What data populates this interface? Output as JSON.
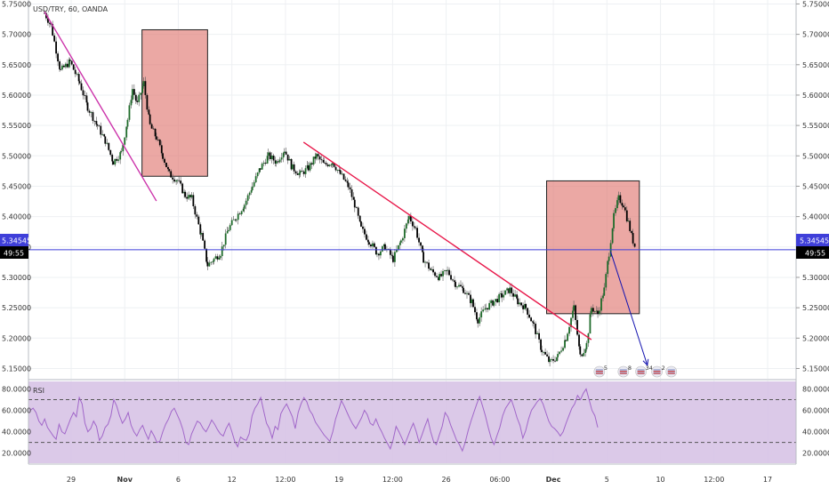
{
  "symbol_label": "USD/TRY, 60, OANDA",
  "colors": {
    "up": "#1e6b2a",
    "down": "#000000",
    "grid": "#eef0f3",
    "box_fill": "#e07a73",
    "box_stroke": "#222222",
    "trendline_magenta": "#cc33aa",
    "trendline_red": "#e8194b",
    "price_line": "#3f3fd9",
    "forecast_arrow": "#1414b0",
    "rsi_line": "#a167c9",
    "rsi_band": "#d7c3e6"
  },
  "chart_data": [
    {
      "type": "candlestick",
      "title": "USD/TRY, 60, OANDA",
      "y_ticks": [
        "5.75000",
        "5.70000",
        "5.65000",
        "5.60000",
        "5.55000",
        "5.50000",
        "5.45000",
        "5.40000",
        "5.35000",
        "5.30000",
        "5.25000",
        "5.20000",
        "5.15000"
      ],
      "ylim": [
        5.1346,
        5.7565
      ],
      "x_ticks": [
        "29",
        "Nov",
        "6",
        "12",
        "12:00",
        "19",
        "12:00",
        "26",
        "06:00",
        "Dec",
        "5",
        "10",
        "12:00",
        "17"
      ],
      "last_price": "5.34545",
      "countdown": "49:55",
      "price_path": [
        [
          0,
          5.735
        ],
        [
          0.4,
          5.715
        ],
        [
          1,
          5.64
        ],
        [
          1.6,
          5.655
        ],
        [
          2.2,
          5.62
        ],
        [
          2.7,
          5.58
        ],
        [
          3.3,
          5.55
        ],
        [
          3.8,
          5.525
        ],
        [
          4.3,
          5.49
        ],
        [
          4.8,
          5.505
        ],
        [
          5.2,
          5.56
        ],
        [
          5.5,
          5.61
        ],
        [
          5.8,
          5.585
        ],
        [
          6.2,
          5.62
        ],
        [
          6.6,
          5.55
        ],
        [
          7,
          5.53
        ],
        [
          7.4,
          5.5
        ],
        [
          7.8,
          5.47
        ],
        [
          8.3,
          5.46
        ],
        [
          8.8,
          5.435
        ],
        [
          9.2,
          5.43
        ],
        [
          9.8,
          5.37
        ],
        [
          10.2,
          5.32
        ],
        [
          10.6,
          5.33
        ],
        [
          11,
          5.34
        ],
        [
          11.5,
          5.38
        ],
        [
          12,
          5.4
        ],
        [
          12.5,
          5.42
        ],
        [
          13,
          5.45
        ],
        [
          13.5,
          5.48
        ],
        [
          14,
          5.5
        ],
        [
          14.5,
          5.49
        ],
        [
          15,
          5.51
        ],
        [
          15.5,
          5.48
        ],
        [
          16,
          5.47
        ],
        [
          16.5,
          5.48
        ],
        [
          17,
          5.5
        ],
        [
          17.5,
          5.485
        ],
        [
          18,
          5.49
        ],
        [
          18.5,
          5.47
        ],
        [
          19,
          5.45
        ],
        [
          19.4,
          5.42
        ],
        [
          19.8,
          5.38
        ],
        [
          20.3,
          5.36
        ],
        [
          20.8,
          5.34
        ],
        [
          21.3,
          5.35
        ],
        [
          21.8,
          5.33
        ],
        [
          22.3,
          5.36
        ],
        [
          22.8,
          5.4
        ],
        [
          23.2,
          5.38
        ],
        [
          23.7,
          5.33
        ],
        [
          24.2,
          5.31
        ],
        [
          24.7,
          5.3
        ],
        [
          25.2,
          5.31
        ],
        [
          25.7,
          5.29
        ],
        [
          26.2,
          5.28
        ],
        [
          26.7,
          5.26
        ],
        [
          27.1,
          5.23
        ],
        [
          27.6,
          5.25
        ],
        [
          28.1,
          5.26
        ],
        [
          28.6,
          5.27
        ],
        [
          29.1,
          5.28
        ],
        [
          29.6,
          5.26
        ],
        [
          30.1,
          5.25
        ],
        [
          30.6,
          5.22
        ],
        [
          31.1,
          5.18
        ],
        [
          31.6,
          5.16
        ],
        [
          32.1,
          5.17
        ],
        [
          32.6,
          5.2
        ],
        [
          33.1,
          5.25
        ],
        [
          33.5,
          5.17
        ],
        [
          33.9,
          5.19
        ],
        [
          34.2,
          5.25
        ],
        [
          34.6,
          5.24
        ],
        [
          35,
          5.28
        ],
        [
          35.3,
          5.34
        ],
        [
          35.6,
          5.4
        ],
        [
          35.9,
          5.43
        ],
        [
          36.2,
          5.42
        ],
        [
          36.5,
          5.39
        ],
        [
          36.8,
          5.36
        ],
        [
          37,
          5.345
        ]
      ],
      "x_index_range": [
        -1,
        47
      ],
      "rectangles": [
        {
          "x1": 6.1,
          "y1": 5.7075,
          "x2": 10.2,
          "y2": 5.4664
        },
        {
          "x1": 31.4,
          "y1": 5.4588,
          "x2": 37.2,
          "y2": 5.2402
        }
      ],
      "trendlines": [
        {
          "x1": 0,
          "y1": 5.7374,
          "x2": 7,
          "y2": 5.4257,
          "color_key": "trendline_magenta"
        },
        {
          "x1": 16.2,
          "y1": 5.5225,
          "x2": 34.2,
          "y2": 5.1974,
          "color_key": "trendline_red"
        }
      ],
      "forecast_arrow": {
        "x1": 35.4,
        "y1": 5.3427,
        "x2": 37.7,
        "y2": 5.1554
      },
      "event_icons": [
        {
          "x": 34.7,
          "label": "5"
        },
        {
          "x": 36.2,
          "label": "8"
        },
        {
          "x": 37.3,
          "label": "34"
        },
        {
          "x": 38.3,
          "label": "2"
        },
        {
          "x": 39.2,
          "label": ""
        }
      ]
    },
    {
      "type": "line",
      "title": "RSI",
      "y_ticks": [
        "80.0000",
        "60.0000",
        "40.0000",
        "20.0000"
      ],
      "ylim": [
        10.5,
        87.1
      ],
      "bands": [
        30,
        70
      ],
      "values": [
        60,
        62,
        58,
        50,
        46,
        52,
        44,
        40,
        36,
        33,
        47,
        40,
        38,
        45,
        52,
        58,
        54,
        72,
        66,
        48,
        40,
        43,
        50,
        45,
        32,
        36,
        44,
        47,
        55,
        70,
        64,
        55,
        48,
        52,
        58,
        46,
        40,
        36,
        42,
        46,
        39,
        33,
        41,
        36,
        30,
        31,
        40,
        47,
        52,
        59,
        62,
        56,
        50,
        42,
        30,
        28,
        38,
        44,
        50,
        48,
        43,
        40,
        45,
        51,
        47,
        42,
        38,
        36,
        43,
        48,
        40,
        31,
        26,
        35,
        33,
        32,
        38,
        55,
        62,
        66,
        72,
        60,
        48,
        43,
        34,
        45,
        42,
        57,
        62,
        66,
        60,
        54,
        43,
        58,
        66,
        72,
        68,
        60,
        56,
        49,
        45,
        41,
        37,
        34,
        31,
        40,
        52,
        60,
        69,
        64,
        58,
        52,
        47,
        43,
        48,
        53,
        60,
        56,
        48,
        46,
        52,
        45,
        40,
        34,
        29,
        24,
        33,
        45,
        40,
        34,
        28,
        35,
        42,
        48,
        40,
        30,
        37,
        45,
        52,
        40,
        31,
        28,
        37,
        45,
        58,
        54,
        46,
        39,
        32,
        28,
        22,
        30,
        41,
        50,
        58,
        66,
        73,
        64,
        55,
        44,
        34,
        28,
        36,
        44,
        55,
        62,
        66,
        70,
        62,
        53,
        46,
        34,
        41,
        52,
        60,
        64,
        68,
        71,
        66,
        58,
        50,
        45,
        43,
        40,
        36,
        40,
        48,
        55,
        62,
        66,
        74,
        70,
        76,
        80,
        70,
        60,
        55,
        44
      ]
    }
  ]
}
